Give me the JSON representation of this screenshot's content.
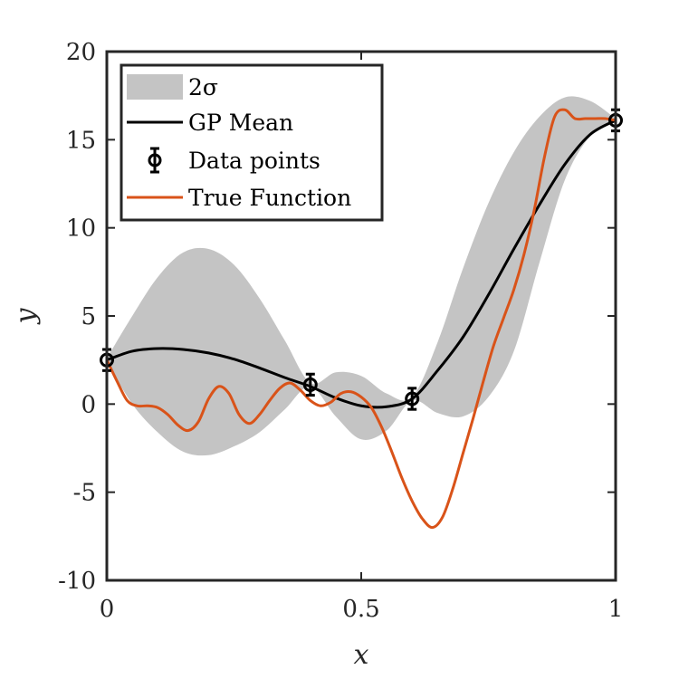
{
  "chart_data": {
    "type": "line",
    "xlabel": "x",
    "ylabel": "y",
    "xlim": [
      0,
      1
    ],
    "ylim": [
      -10,
      20
    ],
    "xticks": [
      0,
      0.5,
      1
    ],
    "xtick_labels": [
      "0",
      "0.5",
      "1"
    ],
    "yticks": [
      -10,
      -5,
      0,
      5,
      10,
      15,
      20
    ],
    "ytick_labels": [
      "-10",
      "-5",
      "0",
      "5",
      "10",
      "15",
      "20"
    ],
    "grid": false,
    "legend_position": "top-left",
    "legend": [
      "2σ",
      "GP Mean",
      "Data points",
      "True Function"
    ],
    "series": [
      {
        "name": "2σ",
        "kind": "band",
        "color": "#c4c4c4",
        "x": [
          0,
          0.05,
          0.1,
          0.15,
          0.2,
          0.25,
          0.3,
          0.35,
          0.4,
          0.45,
          0.5,
          0.55,
          0.6,
          0.65,
          0.7,
          0.75,
          0.8,
          0.85,
          0.9,
          0.95,
          1.0
        ],
        "upper": [
          2.6,
          5.0,
          7.2,
          8.6,
          8.8,
          7.9,
          6.0,
          3.6,
          1.2,
          1.8,
          1.6,
          0.6,
          0.4,
          3.5,
          7.7,
          11.4,
          14.3,
          16.3,
          17.4,
          17.2,
          16.2
        ],
        "lower": [
          2.4,
          0.0,
          -1.6,
          -2.7,
          -2.9,
          -2.4,
          -1.6,
          -0.3,
          1.0,
          -0.7,
          -2.0,
          -1.5,
          0.2,
          -0.5,
          -0.7,
          0.4,
          3.0,
          8.0,
          12.7,
          15.2,
          16.0
        ]
      },
      {
        "name": "GP Mean",
        "kind": "line",
        "color": "#000000",
        "x": [
          0,
          0.05,
          0.1,
          0.15,
          0.2,
          0.25,
          0.3,
          0.35,
          0.4,
          0.45,
          0.5,
          0.55,
          0.6,
          0.65,
          0.7,
          0.75,
          0.8,
          0.85,
          0.9,
          0.95,
          1.0
        ],
        "y": [
          2.5,
          3.0,
          3.15,
          3.1,
          2.9,
          2.55,
          2.05,
          1.5,
          1.0,
          0.35,
          -0.1,
          -0.15,
          0.3,
          1.9,
          3.8,
          6.2,
          8.8,
          11.3,
          13.6,
          15.3,
          16.1
        ]
      },
      {
        "name": "Data points",
        "kind": "errorbar",
        "color": "#000000",
        "x": [
          0,
          0.4,
          0.6,
          1.0
        ],
        "y": [
          2.5,
          1.1,
          0.3,
          16.1
        ],
        "err": [
          0.6,
          0.6,
          0.6,
          0.6
        ]
      },
      {
        "name": "True Function",
        "kind": "line",
        "color": "#d95319",
        "x": [
          0,
          0.02,
          0.04,
          0.06,
          0.08,
          0.1,
          0.12,
          0.14,
          0.16,
          0.18,
          0.2,
          0.22,
          0.24,
          0.26,
          0.28,
          0.3,
          0.32,
          0.34,
          0.36,
          0.38,
          0.4,
          0.42,
          0.44,
          0.46,
          0.48,
          0.5,
          0.52,
          0.54,
          0.56,
          0.58,
          0.6,
          0.62,
          0.64,
          0.66,
          0.68,
          0.7,
          0.72,
          0.74,
          0.76,
          0.78,
          0.8,
          0.82,
          0.84,
          0.86,
          0.88,
          0.9,
          0.92,
          0.94,
          0.96,
          0.98,
          1.0
        ],
        "y": [
          2.5,
          1.3,
          0.2,
          -0.1,
          -0.1,
          -0.2,
          -0.6,
          -1.2,
          -1.5,
          -1.0,
          0.3,
          1.0,
          0.6,
          -0.6,
          -1.1,
          -0.6,
          0.2,
          0.9,
          1.2,
          0.8,
          0.2,
          -0.1,
          0.1,
          0.6,
          0.7,
          0.4,
          -0.2,
          -1.3,
          -2.7,
          -4.2,
          -5.5,
          -6.5,
          -7.0,
          -6.4,
          -4.8,
          -2.8,
          -0.8,
          1.3,
          3.3,
          4.9,
          6.5,
          8.5,
          11.0,
          14.0,
          16.3,
          16.7,
          16.2,
          16.2,
          16.2,
          16.2,
          16.1
        ]
      }
    ]
  }
}
